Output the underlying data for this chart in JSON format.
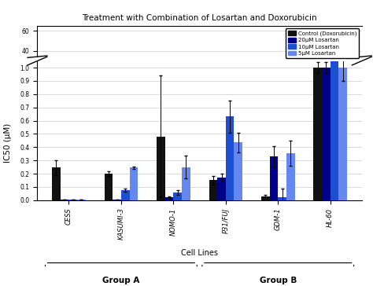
{
  "title": "Treatment with Combination of Losartan and Doxorubicin",
  "xlabel": "Cell Lines",
  "ylabel": "IC50 (μM)",
  "cell_lines": [
    "CESS",
    "KASUMI-3",
    "NOMO-1",
    "P31/FUJ",
    "GDM-1",
    "HL-60"
  ],
  "groups": {
    "Group A": [
      0,
      1,
      2
    ],
    "Group B": [
      3,
      4,
      5
    ]
  },
  "bar_colors": {
    "Control (Doxorubicin)": "#111111",
    "20μM Losartan": "#00008B",
    "10μM Losartan": "#1C4FD1",
    "5μM Losartan": "#6688EE"
  },
  "data": {
    "Control (Doxorubicin)": {
      "CESS": [
        0.245,
        0.055
      ],
      "KASUMI-3": [
        0.2,
        0.018
      ],
      "NOMO-1": [
        0.48,
        0.46
      ],
      "P31/FUJ": [
        0.15,
        0.03
      ],
      "GDM-1": [
        0.03,
        0.01
      ],
      "HL-60": [
        1.0,
        0.04
      ]
    },
    "20μM Losartan": {
      "CESS": [
        0.005,
        0.002
      ],
      "KASUMI-3": [
        0.005,
        0.002
      ],
      "NOMO-1": [
        0.022,
        0.008
      ],
      "P31/FUJ": [
        0.17,
        0.028
      ],
      "GDM-1": [
        0.33,
        0.08
      ],
      "HL-60": [
        1.0,
        0.04
      ]
    },
    "10μM Losartan": {
      "CESS": [
        0.005,
        0.002
      ],
      "KASUMI-3": [
        0.075,
        0.01
      ],
      "NOMO-1": [
        0.058,
        0.018
      ],
      "P31/FUJ": [
        0.63,
        0.12
      ],
      "GDM-1": [
        0.02,
        0.065
      ],
      "HL-60": [
        39.0,
        20.0
      ]
    },
    "5μM Losartan": {
      "CESS": [
        0.005,
        0.002
      ],
      "KASUMI-3": [
        0.245,
        0.01
      ],
      "NOMO-1": [
        0.25,
        0.085
      ],
      "P31/FUJ": [
        0.435,
        0.075
      ],
      "GDM-1": [
        0.355,
        0.095
      ],
      "HL-60": [
        1.0,
        0.1
      ]
    }
  },
  "ylim_main": [
    0.0,
    1.05
  ],
  "yticks_main": [
    0.0,
    0.1,
    0.2,
    0.3,
    0.4,
    0.5,
    0.6,
    0.7,
    0.8,
    0.9,
    1.0
  ],
  "ylim_upper": [
    34,
    65
  ],
  "yticks_upper": [
    40,
    60
  ],
  "background_color": "#FFFFFF",
  "bar_width": 0.16
}
